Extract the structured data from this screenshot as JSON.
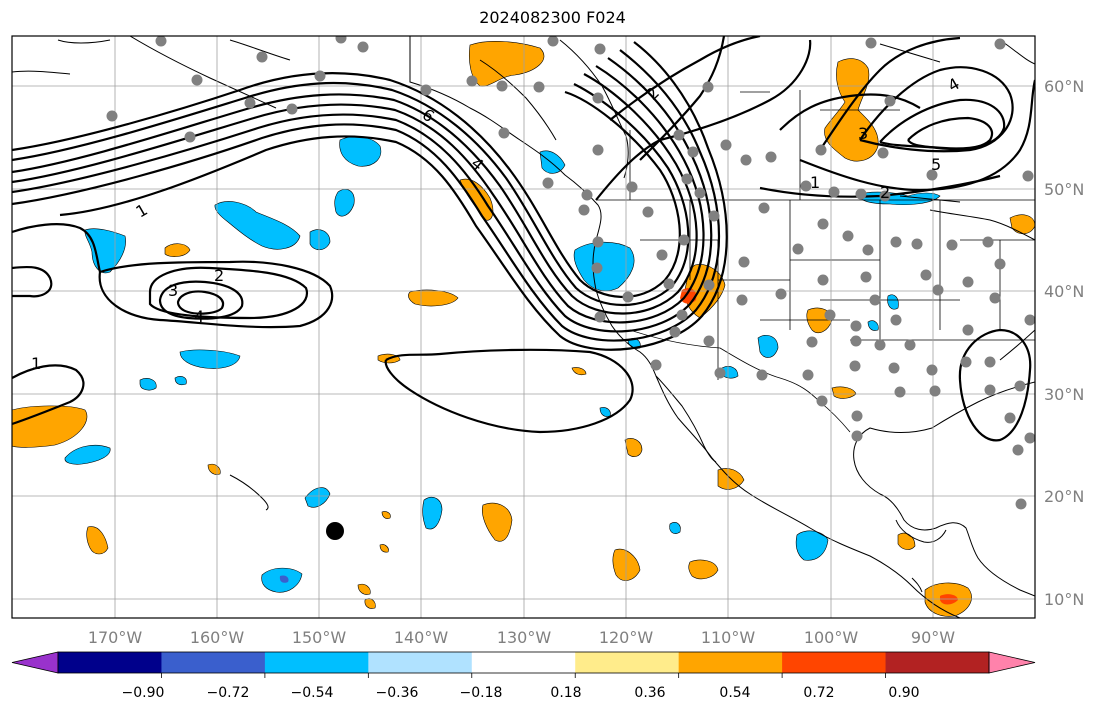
{
  "title": "2024082300 F024",
  "lon_labels": [
    "170°W",
    "160°W",
    "150°W",
    "140°W",
    "130°W",
    "120°W",
    "110°W",
    "100°W",
    "90°W"
  ],
  "lat_labels": [
    "60°N",
    "50°N",
    "40°N",
    "30°N",
    "20°N",
    "10°N"
  ],
  "colorbar": {
    "tick_labels": [
      "−0.90",
      "−0.72",
      "−0.54",
      "−0.36",
      "−0.18",
      "0.18",
      "0.36",
      "0.54",
      "0.72",
      "0.90"
    ],
    "colors": [
      "#9932CC",
      "#00008B",
      "#3A5FCD",
      "#00BFFF",
      "#B0E2FF",
      "#FFFFFF",
      "#FFEC8B",
      "#FFA500",
      "#FF4500",
      "#B22222",
      "#FF82AB"
    ]
  },
  "contour_labels": {
    "c6": "6",
    "c4a": "4",
    "c2a": "2",
    "c1a": "1",
    "c2b": "2",
    "c3b": "3",
    "c4b": "4",
    "c1c": "1",
    "c3d": "3",
    "c4d": "4",
    "c5d": "5",
    "c2d": "2",
    "c1d": "1"
  },
  "colors": {
    "positive": "#FFA500",
    "negative": "#00BFFF",
    "station": "#808080"
  }
}
